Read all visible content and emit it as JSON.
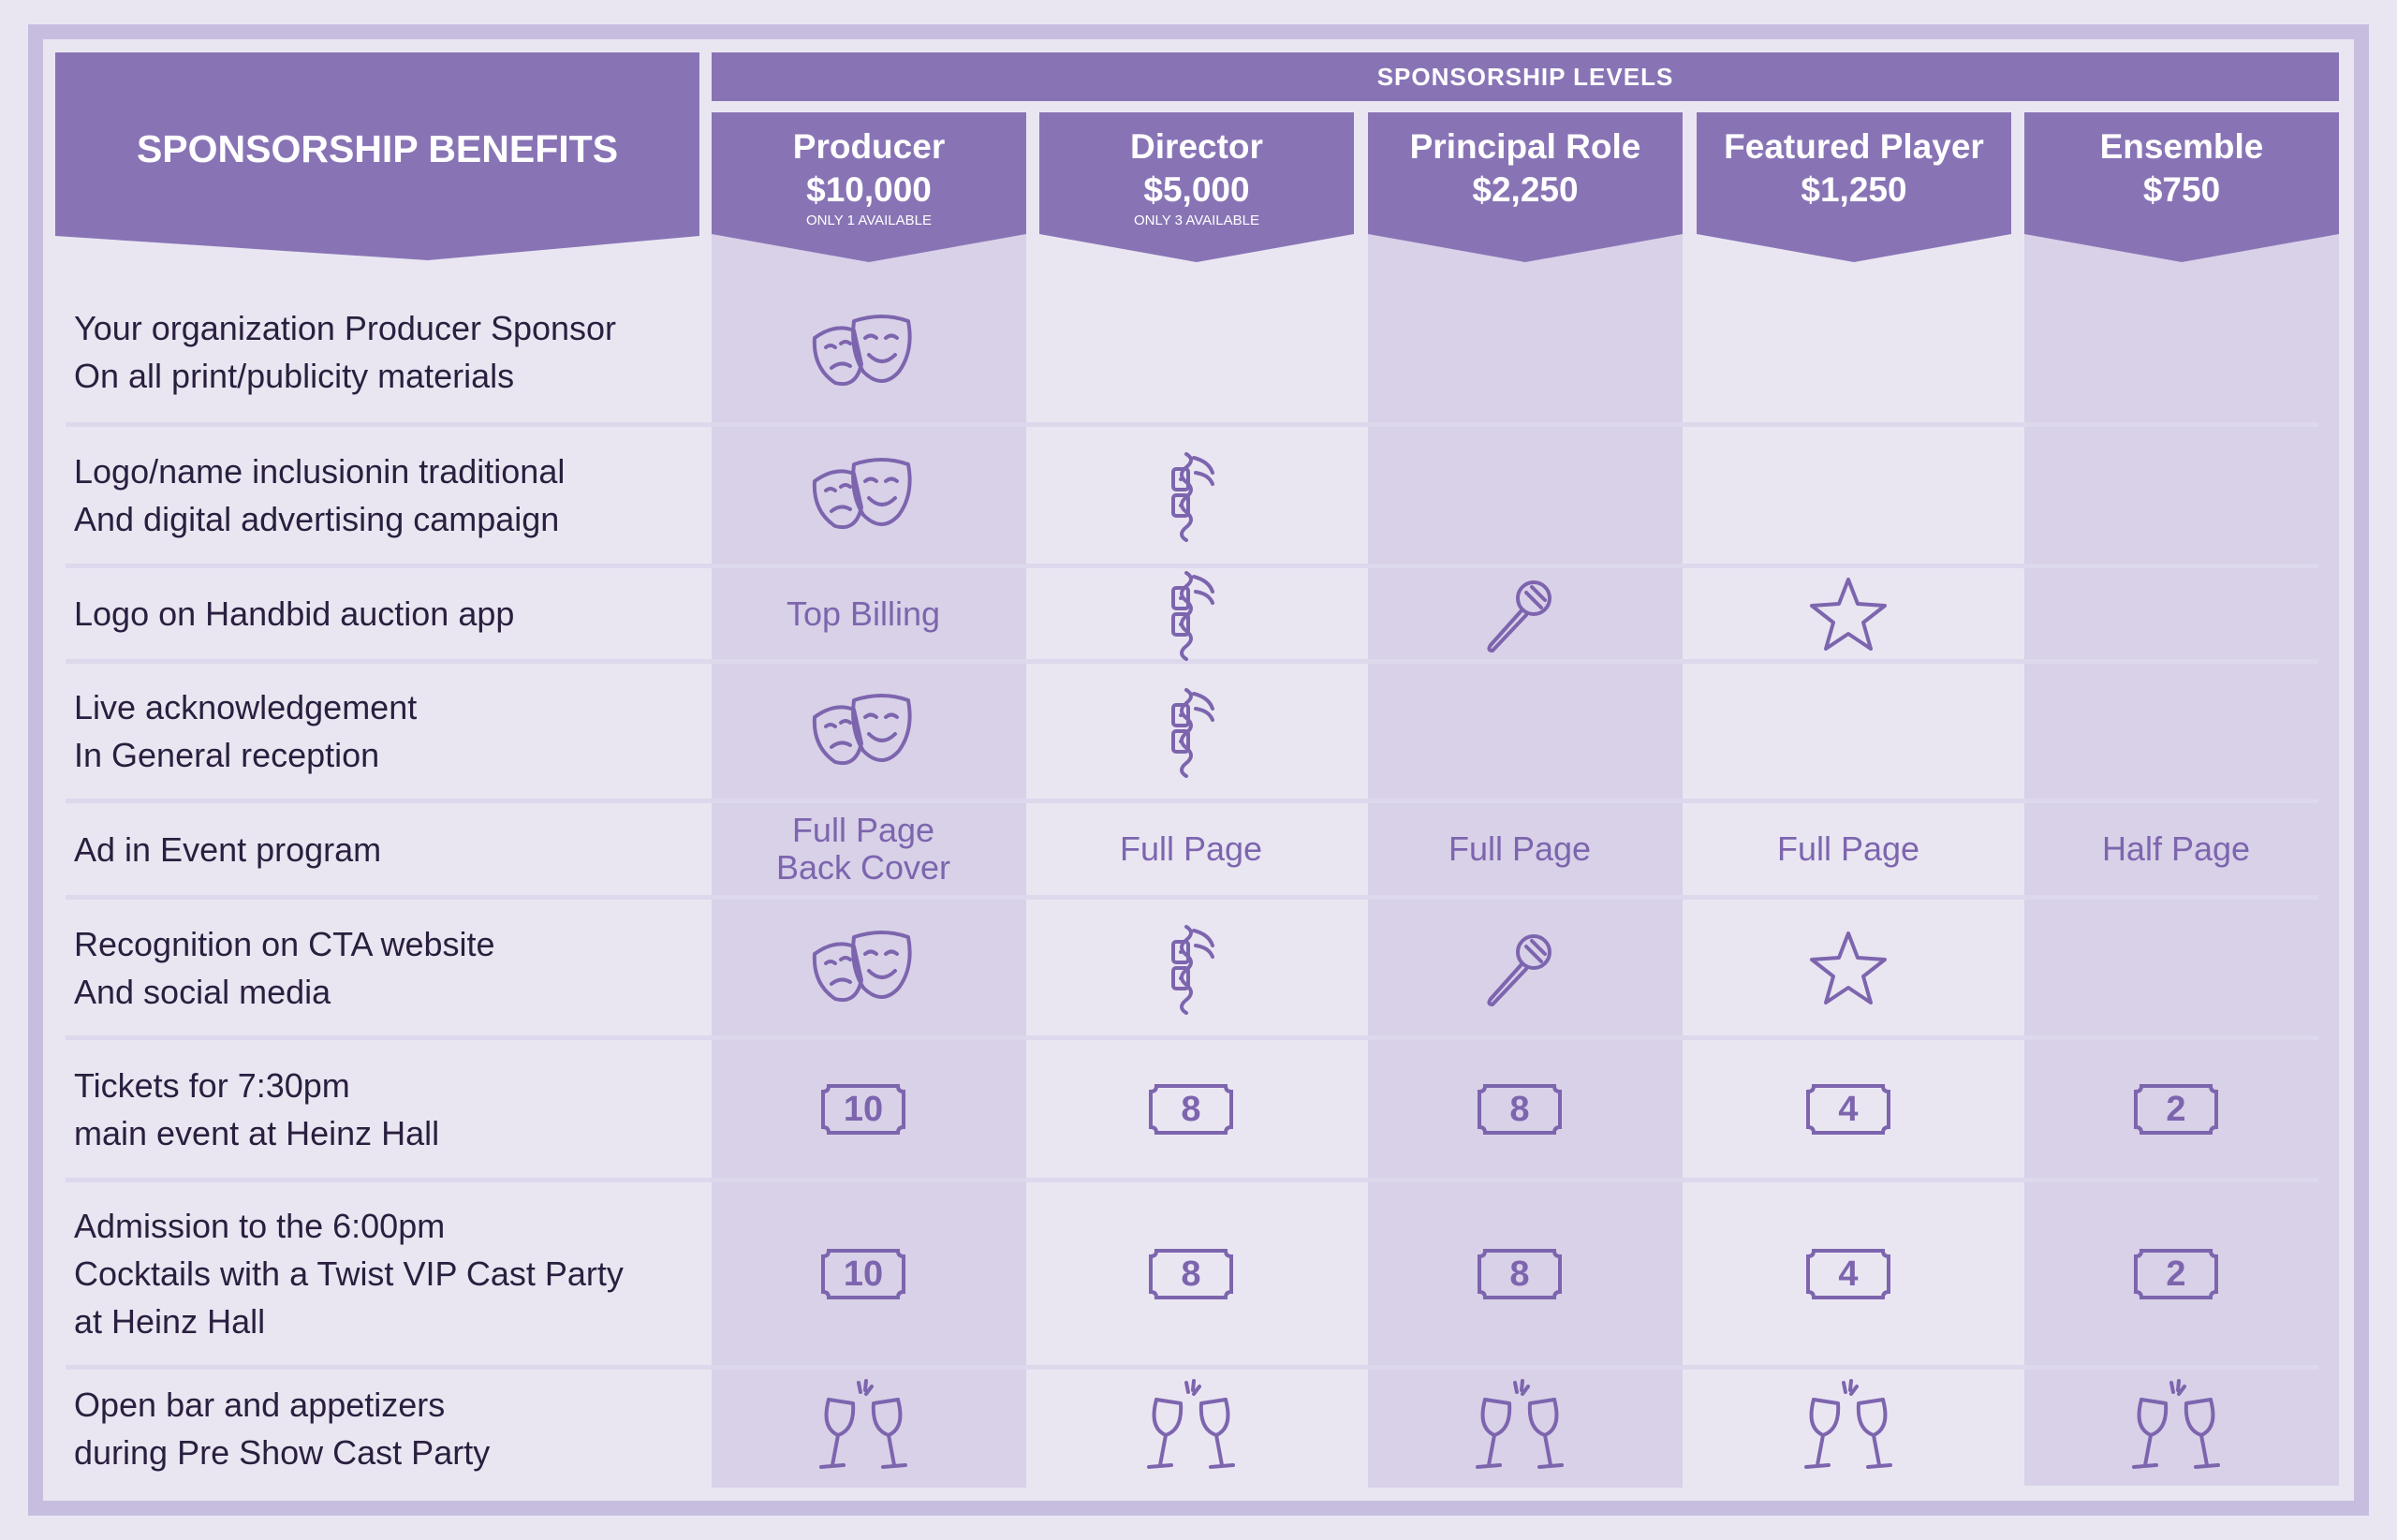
{
  "header": {
    "benefits_title": "SPONSORSHIP BENEFITS",
    "levels_title": "SPONSORSHIP LEVELS"
  },
  "levels": [
    {
      "name": "Producer",
      "price": "$10,000",
      "note": "ONLY 1 AVAILABLE"
    },
    {
      "name": "Director",
      "price": "$5,000",
      "note": "ONLY 3 AVAILABLE"
    },
    {
      "name": "Principal Role",
      "price": "$2,250",
      "note": ""
    },
    {
      "name": "Featured Player",
      "price": "$1,250",
      "note": ""
    },
    {
      "name": "Ensemble",
      "price": "$750",
      "note": ""
    }
  ],
  "rows": [
    {
      "label": "Your organization Producer Sponsor\nOn all print/publicity materials",
      "cells": [
        {
          "icon": "theater-masks-icon"
        },
        null,
        null,
        null,
        null
      ]
    },
    {
      "label": "Logo/name inclusionin traditional\nAnd digital advertising campaign",
      "cells": [
        {
          "icon": "theater-masks-icon"
        },
        {
          "icon": "film-reel-icon"
        },
        null,
        null,
        null
      ]
    },
    {
      "label": "Logo on Handbid auction app",
      "cells": [
        {
          "text": "Top Billing"
        },
        {
          "icon": "film-reel-icon"
        },
        {
          "icon": "microphone-icon"
        },
        {
          "icon": "star-icon"
        },
        null
      ]
    },
    {
      "label": "Live acknowledgement\nIn General reception",
      "cells": [
        {
          "icon": "theater-masks-icon"
        },
        {
          "icon": "film-reel-icon"
        },
        null,
        null,
        null
      ]
    },
    {
      "label": "Ad in Event program",
      "cells": [
        {
          "text": "Full Page\nBack Cover"
        },
        {
          "text": "Full Page"
        },
        {
          "text": "Full Page"
        },
        {
          "text": "Full Page"
        },
        {
          "text": "Half Page"
        }
      ]
    },
    {
      "label": "Recognition on CTA website\nAnd social media",
      "cells": [
        {
          "icon": "theater-masks-icon"
        },
        {
          "icon": "film-reel-icon"
        },
        {
          "icon": "microphone-icon"
        },
        {
          "icon": "star-icon"
        },
        null
      ]
    },
    {
      "label": "Tickets for 7:30pm\nmain event at Heinz Hall",
      "cells": [
        {
          "ticket": "10"
        },
        {
          "ticket": "8"
        },
        {
          "ticket": "8"
        },
        {
          "ticket": "4"
        },
        {
          "ticket": "2"
        }
      ]
    },
    {
      "label": "Admission to the 6:00pm\nCocktails with a Twist VIP Cast Party\nat Heinz Hall",
      "cells": [
        {
          "ticket": "10"
        },
        {
          "ticket": "8"
        },
        {
          "ticket": "8"
        },
        {
          "ticket": "4"
        },
        {
          "ticket": "2"
        }
      ]
    },
    {
      "label": "Open bar and appetizers\nduring Pre Show Cast Party",
      "cells": [
        {
          "icon": "champagne-glasses-icon"
        },
        {
          "icon": "champagne-glasses-icon"
        },
        {
          "icon": "champagne-glasses-icon"
        },
        {
          "icon": "champagne-glasses-icon"
        },
        {
          "icon": "champagne-glasses-icon"
        }
      ]
    }
  ],
  "colors": {
    "accent": "#8874b5",
    "icon": "#7d65ae",
    "shade": "#d8d1e8",
    "background": "#e9e6f2"
  }
}
